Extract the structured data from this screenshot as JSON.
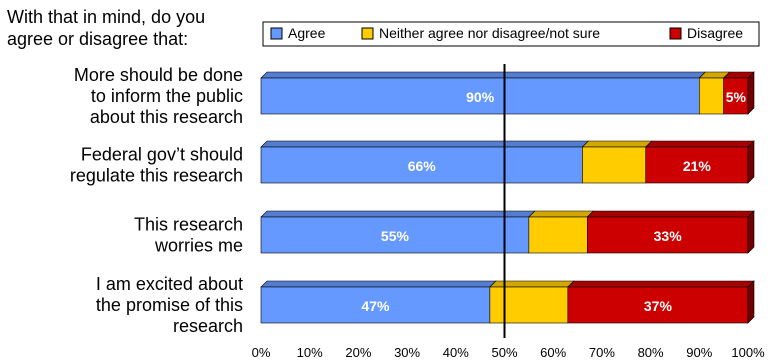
{
  "question": {
    "lines": [
      "With that in mind, do you",
      "agree or disagree that:"
    ]
  },
  "colors": {
    "agree": "#6699FF",
    "neither": "#FFCC00",
    "disagree": "#CC0000"
  },
  "chart_data": {
    "type": "bar",
    "orientation": "horizontal",
    "stacked": true,
    "categories": [
      [
        "More should be done",
        "to inform the public",
        "about this research"
      ],
      [
        "Federal gov’t should",
        "regulate this research"
      ],
      [
        "This research",
        "worries me"
      ],
      [
        "I am excited about",
        "the promise of this",
        "research"
      ]
    ],
    "series": [
      {
        "name": "Agree",
        "values": [
          90,
          66,
          55,
          47
        ],
        "labels": [
          "90%",
          "66%",
          "55%",
          "47%"
        ]
      },
      {
        "name": "Neither agree nor disagree/not sure",
        "values": [
          5,
          13,
          12,
          16
        ],
        "labels": [
          "",
          "",
          "",
          ""
        ]
      },
      {
        "name": "Disagree",
        "values": [
          5,
          21,
          33,
          37
        ],
        "labels": [
          "5%",
          "21%",
          "33%",
          "37%"
        ]
      }
    ],
    "xlim": [
      0,
      100
    ],
    "x_ticks": [
      "0%",
      "10%",
      "20%",
      "30%",
      "40%",
      "50%",
      "60%",
      "70%",
      "80%",
      "90%",
      "100%"
    ],
    "reference_line": 50,
    "legend_position": "top-right",
    "grid": false
  }
}
